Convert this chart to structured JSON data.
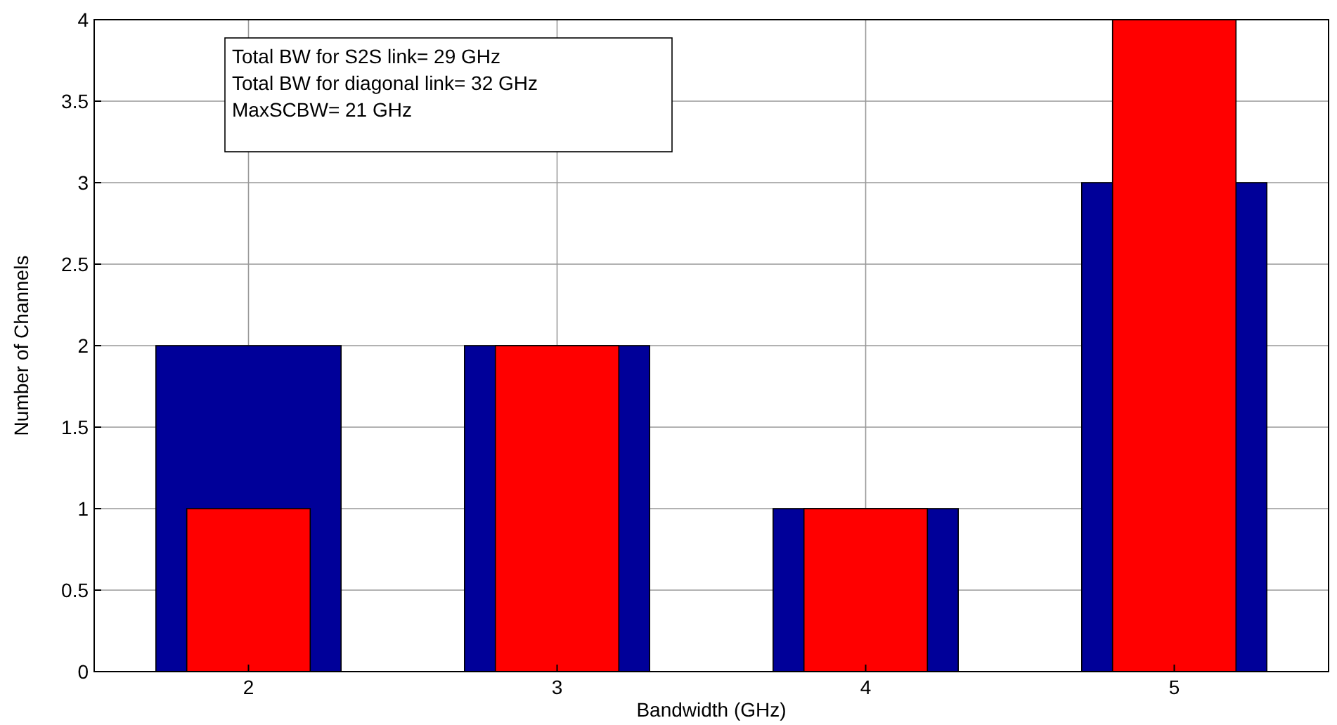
{
  "chart_data": {
    "type": "bar",
    "xlabel": "Bandwidth (GHz)",
    "ylabel": "Number of Channels",
    "categories": [
      "2",
      "3",
      "4",
      "5"
    ],
    "series": [
      {
        "color": "#000099",
        "values": [
          2,
          2,
          1,
          3
        ]
      },
      {
        "color": "#ff0000",
        "values": [
          1,
          2,
          1,
          4
        ]
      }
    ],
    "ylim": [
      0,
      4
    ],
    "yticks": [
      0,
      0.5,
      1,
      1.5,
      2,
      2.5,
      3,
      3.5,
      4
    ],
    "grid": true,
    "annotations": [
      "Total BW for S2S link= 29 GHz",
      "Total BW for diagonal link= 32 GHz",
      "MaxSCBW= 21 GHz"
    ]
  }
}
